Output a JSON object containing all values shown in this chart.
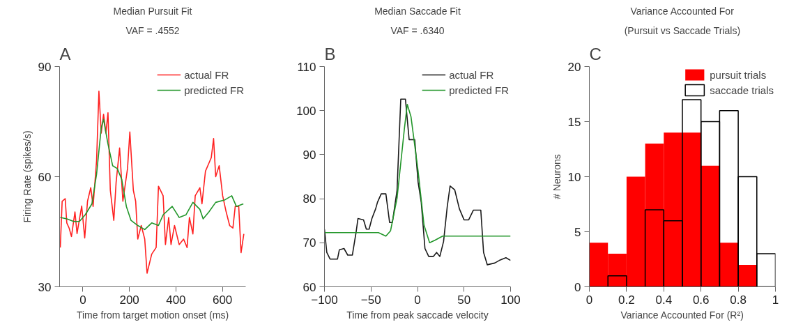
{
  "chart_data": [
    {
      "type": "line",
      "title": "Median Pursuit Fit",
      "subtitle": "VAF = .4552",
      "annotations": [
        "A"
      ],
      "xlabel": "Time from target motion onset (ms)",
      "ylabel": "Firing Rate (spikes/s)",
      "xlim": [
        -100,
        700
      ],
      "xticks": [
        0,
        200,
        400,
        600
      ],
      "ylim": [
        30,
        90
      ],
      "yticks": [
        30,
        60,
        90
      ],
      "grid": false,
      "legend": "top right",
      "series": [
        {
          "name": "actual FR",
          "color": "#ff2020",
          "x": [
            -97,
            -89,
            -76,
            -69,
            -59,
            -49,
            -34,
            -25,
            -5,
            8,
            20,
            34,
            44,
            59,
            69,
            79,
            89,
            99,
            108,
            118,
            133,
            143,
            158,
            172,
            192,
            202,
            217,
            227,
            236,
            251,
            266,
            276,
            296,
            315,
            325,
            345,
            355,
            369,
            379,
            394,
            414,
            433,
            448,
            458,
            473,
            483,
            503,
            512,
            527,
            542,
            552,
            562,
            571,
            586,
            601,
            616,
            631,
            645,
            655,
            670,
            680,
            692
          ],
          "values": [
            40.7,
            53.3,
            54,
            47.4,
            46,
            43.7,
            50.4,
            44.5,
            52,
            43.3,
            53.3,
            57,
            51.9,
            64.4,
            83.3,
            71.9,
            77,
            71.9,
            77.4,
            56.3,
            48.1,
            58.5,
            67.8,
            53.3,
            62.2,
            72.2,
            56.3,
            53.3,
            43,
            46.7,
            43,
            33.7,
            38.9,
            40.7,
            57.4,
            54.8,
            41.5,
            48.9,
            41.5,
            46.7,
            41.5,
            43,
            40.7,
            48.9,
            44.4,
            54.8,
            57,
            52.6,
            61.5,
            63.7,
            65.2,
            70.4,
            60,
            63,
            54.8,
            50.4,
            46.7,
            46,
            51.9,
            51.9,
            39.3,
            44.4
          ]
        },
        {
          "name": "predicted FR",
          "color": "#22962a",
          "x": [
            -97,
            -69,
            -39,
            -15,
            10,
            39,
            59,
            79,
            89,
            108,
            128,
            148,
            167,
            187,
            207,
            236,
            266,
            296,
            325,
            345,
            384,
            414,
            443,
            473,
            503,
            517,
            542,
            571,
            611,
            640,
            660,
            690
          ],
          "values": [
            48.9,
            48.5,
            47.8,
            47.8,
            49.6,
            52.6,
            60.7,
            73.3,
            75.6,
            68.9,
            63,
            62.2,
            59.3,
            51.9,
            48.1,
            46.7,
            45.6,
            47.4,
            46.7,
            49.6,
            51.9,
            48.9,
            49.6,
            53,
            51.1,
            48.5,
            50.4,
            53,
            53.7,
            54.8,
            51.9,
            52.6
          ]
        }
      ]
    },
    {
      "type": "line",
      "title": "Median Saccade Fit",
      "subtitle": "VAF = .6340",
      "annotations": [
        "B"
      ],
      "xlabel": "Time from peak saccade velocity",
      "xlim": [
        -100,
        100
      ],
      "xticks": [
        -100,
        -50,
        0,
        50,
        100
      ],
      "ylim": [
        60,
        110
      ],
      "yticks": [
        60,
        70,
        80,
        90,
        100,
        110
      ],
      "grid": false,
      "legend": "top right",
      "series": [
        {
          "name": "actual FR",
          "color": "#1a1a1a",
          "x": [
            -100,
            -97.5,
            -94,
            -86,
            -84,
            -79,
            -75,
            -70,
            -66,
            -64,
            -58,
            -55,
            -52,
            -49,
            -45,
            -43,
            -39,
            -34,
            -30,
            -27,
            -22,
            -18,
            -13,
            -9,
            -3,
            0.6,
            4,
            8,
            12,
            17,
            20.5,
            24,
            28,
            32,
            35,
            40,
            45,
            50,
            55,
            60,
            68,
            71,
            75,
            83,
            88,
            95,
            100
          ],
          "values": [
            73.1,
            67.8,
            66.3,
            66.3,
            68.4,
            68.7,
            67.2,
            67.2,
            72.4,
            75.5,
            75.2,
            73.1,
            73.1,
            75.5,
            77.7,
            79.2,
            81.1,
            81.1,
            74.6,
            74.6,
            81.9,
            102.6,
            102.6,
            93.4,
            93.4,
            83.8,
            79.2,
            68.7,
            66.9,
            66.9,
            67.8,
            66.9,
            70.3,
            78.3,
            82.9,
            82,
            77.7,
            75.2,
            75.2,
            77.4,
            77.4,
            67.8,
            65,
            65.4,
            66,
            66.6,
            66
          ]
        },
        {
          "name": "predicted FR",
          "color": "#22962a",
          "x": [
            -100,
            -42,
            -34,
            -29,
            -22,
            -14,
            -11,
            -7,
            0.6,
            7,
            13,
            19,
            27,
            100
          ],
          "values": [
            72.3,
            72.3,
            71.5,
            72.7,
            80.1,
            96.1,
            101.4,
            98.6,
            86.3,
            74,
            70,
            70.6,
            71.5,
            71.5
          ]
        }
      ]
    },
    {
      "type": "histogram",
      "title": "Variance Accounted For",
      "subtitle": "(Pursuit vs Saccade Trials)",
      "annotations": [
        "C"
      ],
      "xlabel": "Variance Accounted For (R²)",
      "ylabel": "# Neurons",
      "xlim": [
        0,
        1
      ],
      "xticks": [
        0,
        {
          "value": 0.2,
          "label": "0.2"
        },
        {
          "value": 0.4,
          "label": "0.4"
        },
        {
          "value": 0.6,
          "label": "0.6"
        },
        {
          "value": 0.8,
          "label": "0.8"
        },
        1
      ],
      "ylim": [
        0,
        20
      ],
      "yticks": [
        0,
        5,
        10,
        15,
        20
      ],
      "grid": false,
      "legend": "top right",
      "bins": [
        0,
        0.1,
        0.2,
        0.3,
        0.4,
        0.5,
        0.6,
        0.7,
        0.8,
        0.9,
        1.0
      ],
      "series": [
        {
          "name": "pursuit trials",
          "color": "#ff0000",
          "values": [
            4,
            3,
            10,
            13,
            14,
            14,
            11,
            4,
            2,
            0
          ]
        },
        {
          "name": "saccade trials",
          "color": "#000000",
          "values": [
            0,
            1,
            0,
            7,
            6,
            17,
            15,
            16,
            10,
            3
          ]
        }
      ]
    }
  ]
}
